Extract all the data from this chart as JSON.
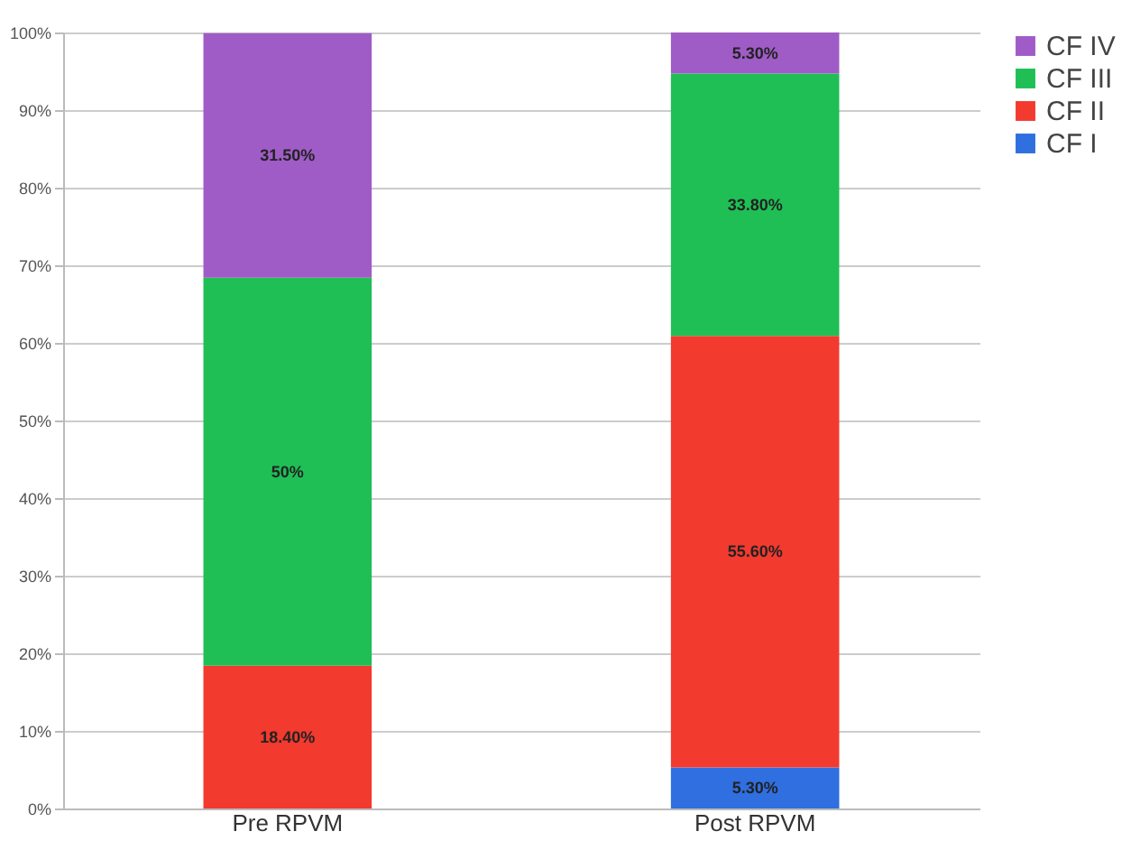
{
  "chart_data": {
    "type": "bar",
    "stacked": true,
    "categories": [
      "Pre RPVM",
      "Post RPVM"
    ],
    "series": [
      {
        "name": "CF I",
        "color": "#2f6fe0",
        "values": [
          null,
          5.3
        ],
        "value_labels": [
          null,
          "5.30%"
        ]
      },
      {
        "name": "CF II",
        "color": "#f23a2f",
        "values": [
          18.4,
          55.6
        ],
        "value_labels": [
          "18.40%",
          "55.60%"
        ]
      },
      {
        "name": "CF III",
        "color": "#1fbf55",
        "values": [
          50,
          33.8
        ],
        "value_labels": [
          "50%",
          "33.80%"
        ]
      },
      {
        "name": "CF IV",
        "color": "#a05cc6",
        "values": [
          31.5,
          5.3
        ],
        "value_labels": [
          "31.50%",
          "5.30%"
        ]
      }
    ],
    "ylim": [
      0,
      100
    ],
    "yticks": [
      {
        "value": 0,
        "label": "0%"
      },
      {
        "value": 10,
        "label": "10%"
      },
      {
        "value": 20,
        "label": "20%"
      },
      {
        "value": 30,
        "label": "30%"
      },
      {
        "value": 40,
        "label": "40%"
      },
      {
        "value": 50,
        "label": "50%"
      },
      {
        "value": 60,
        "label": "60%"
      },
      {
        "value": 70,
        "label": "70%"
      },
      {
        "value": 80,
        "label": "80%"
      },
      {
        "value": 90,
        "label": "90%"
      },
      {
        "value": 100,
        "label": "100%"
      }
    ],
    "grid": "y",
    "legend": "right"
  }
}
